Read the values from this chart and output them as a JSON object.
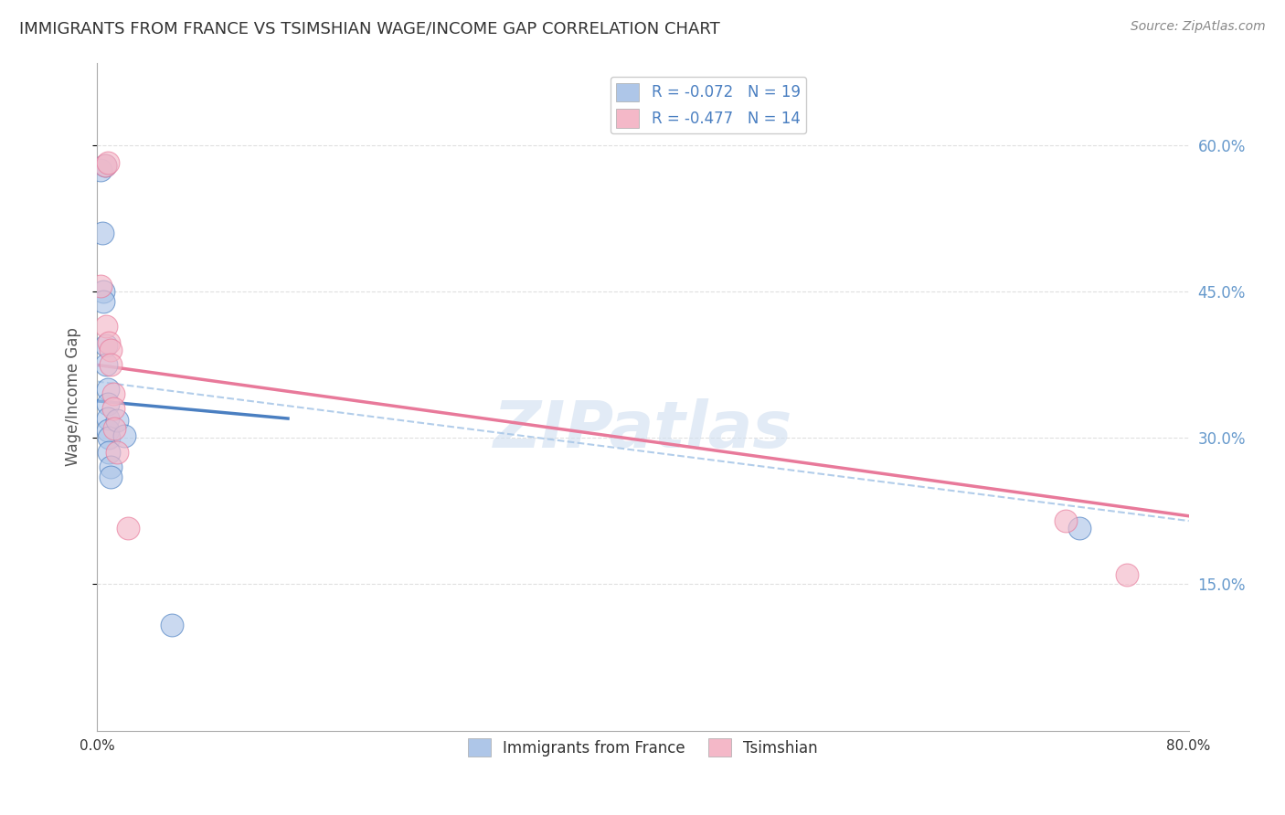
{
  "title": "IMMIGRANTS FROM FRANCE VS TSIMSHIAN WAGE/INCOME GAP CORRELATION CHART",
  "source": "Source: ZipAtlas.com",
  "ylabel": "Wage/Income Gap",
  "ytick_labels": [
    "15.0%",
    "30.0%",
    "45.0%",
    "60.0%"
  ],
  "ytick_values": [
    0.15,
    0.3,
    0.45,
    0.6
  ],
  "xmin": 0.0,
  "xmax": 0.8,
  "ymin": 0.0,
  "ymax": 0.685,
  "legend_entries": [
    {
      "label": "R = -0.072   N = 19",
      "color": "#aec6e8"
    },
    {
      "label": "R = -0.477   N = 14",
      "color": "#f4b8c8"
    }
  ],
  "legend_bottom": [
    {
      "label": "Immigrants from France",
      "color": "#aec6e8"
    },
    {
      "label": "Tsimshian",
      "color": "#f4b8c8"
    }
  ],
  "blue_points": [
    [
      0.003,
      0.575
    ],
    [
      0.006,
      0.58
    ],
    [
      0.004,
      0.51
    ],
    [
      0.005,
      0.45
    ],
    [
      0.005,
      0.44
    ],
    [
      0.007,
      0.395
    ],
    [
      0.007,
      0.375
    ],
    [
      0.008,
      0.35
    ],
    [
      0.008,
      0.335
    ],
    [
      0.008,
      0.32
    ],
    [
      0.008,
      0.308
    ],
    [
      0.009,
      0.3
    ],
    [
      0.009,
      0.285
    ],
    [
      0.01,
      0.27
    ],
    [
      0.01,
      0.26
    ],
    [
      0.015,
      0.318
    ],
    [
      0.02,
      0.302
    ],
    [
      0.055,
      0.108
    ],
    [
      0.72,
      0.208
    ]
  ],
  "pink_points": [
    [
      0.003,
      0.456
    ],
    [
      0.006,
      0.58
    ],
    [
      0.008,
      0.582
    ],
    [
      0.007,
      0.415
    ],
    [
      0.009,
      0.398
    ],
    [
      0.01,
      0.39
    ],
    [
      0.01,
      0.375
    ],
    [
      0.012,
      0.345
    ],
    [
      0.012,
      0.33
    ],
    [
      0.013,
      0.31
    ],
    [
      0.015,
      0.285
    ],
    [
      0.023,
      0.208
    ],
    [
      0.71,
      0.215
    ],
    [
      0.755,
      0.16
    ]
  ],
  "blue_line_x": [
    0.0,
    0.14
  ],
  "blue_line_y": [
    0.338,
    0.32
  ],
  "pink_line_x": [
    0.0,
    0.8
  ],
  "pink_line_y": [
    0.375,
    0.22
  ],
  "dashed_line_x": [
    0.0,
    0.8
  ],
  "dashed_line_y": [
    0.358,
    0.215
  ],
  "background_color": "#ffffff",
  "grid_color": "#dddddd",
  "blue_scatter_color": "#aec6e8",
  "pink_scatter_color": "#f4b8c8",
  "blue_line_color": "#4a7fc1",
  "pink_line_color": "#e8799a",
  "dashed_line_color": "#aac8e8",
  "title_color": "#333333",
  "source_color": "#888888",
  "watermark_color": "#d0dff0",
  "watermark_text": "ZIPatlas",
  "right_axis_color": "#6699cc"
}
